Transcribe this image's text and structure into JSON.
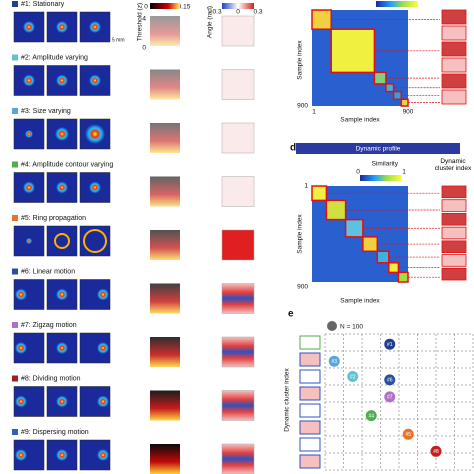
{
  "panel_a": {
    "rows": [
      {
        "label": "#1: Stationary",
        "color": "#1f3f8f"
      },
      {
        "label": "#2: Amplitude varying",
        "color": "#5fc3d0"
      },
      {
        "label": "#3: Size varying",
        "color": "#5aa6dc"
      },
      {
        "label": "#4: Amplitude contour varying",
        "color": "#4cae4c"
      },
      {
        "label": "#5: Ring propagation",
        "color": "#e8732a"
      },
      {
        "label": "#6: Linear motion",
        "color": "#2a4fa0"
      },
      {
        "label": "#7: Zigzag motion",
        "color": "#b070c8"
      },
      {
        "label": "#8: Dividing motion",
        "color": "#a02020"
      },
      {
        "label": "#9: Dispersing motion",
        "color": "#3060b0"
      }
    ],
    "scale": "5 mm"
  },
  "threshold": {
    "cbar_min": "0",
    "cbar_max": "0.15",
    "axis_label": "Threshold (z)",
    "ytop": "4",
    "ybottom": "0"
  },
  "angle": {
    "cbar_min": "-0.3",
    "cbar_mid": "0",
    "cbar_max": "0.3",
    "axis_label": "Angle (rad)",
    "ytop": "π",
    "ybottom": "0"
  },
  "panel_c": {
    "ylabel": "Sample index",
    "xlabel": "Sample index",
    "start": "1",
    "end": "900"
  },
  "panel_d": {
    "letter": "d",
    "header": "Dynamic profile",
    "cbar_label": "Similarity",
    "cbar_min": "0",
    "cbar_max": "1",
    "cluster_label": "Dynamic cluster index",
    "ylabel": "Sample index",
    "xlabel": "Sample index",
    "start": "1",
    "end": "900"
  },
  "panel_e": {
    "letter": "e",
    "legend": "N = 100",
    "ylabel": "Dynamic cluster index",
    "bubbles": [
      {
        "label": "#1",
        "color": "#1f3f8f"
      },
      {
        "label": "#3",
        "color": "#5aa6dc"
      },
      {
        "label": "#2",
        "color": "#5fc3d0"
      },
      {
        "label": "#6",
        "color": "#2a4fa0"
      },
      {
        "label": "#7",
        "color": "#b070c8"
      },
      {
        "label": "#4",
        "color": "#4cae4c"
      },
      {
        "label": "#5",
        "color": "#e8732a"
      },
      {
        "label": "#8",
        "color": "#c02020"
      }
    ]
  }
}
